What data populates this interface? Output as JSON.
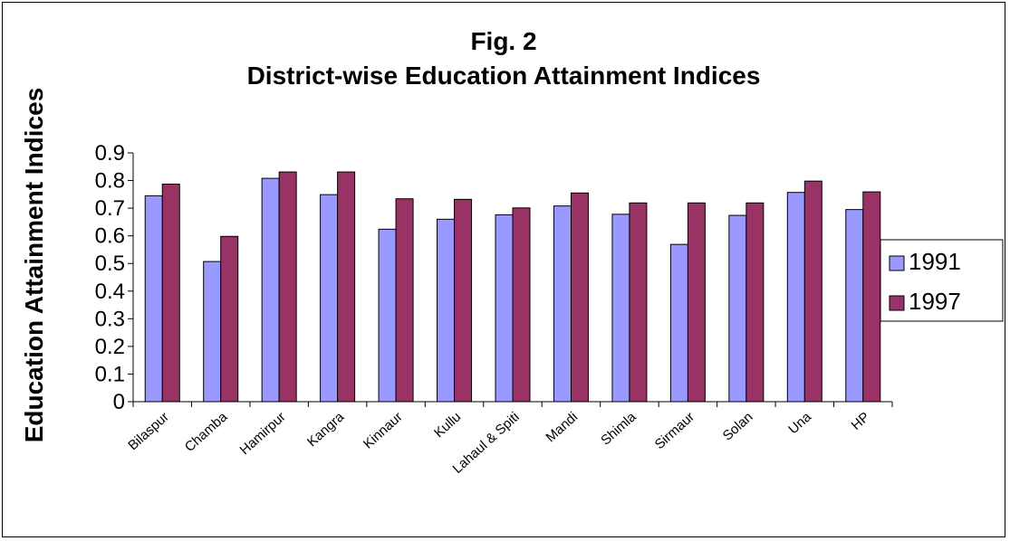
{
  "chart_data": {
    "type": "bar",
    "title_line1": "Fig. 2",
    "title_line2": "District-wise Education Attainment Indices",
    "xlabel": "",
    "ylabel": "Education Attainment Indices",
    "ylim": [
      0,
      0.9
    ],
    "yticks": [
      "0",
      "0.1",
      "0.2",
      "0.3",
      "0.4",
      "0.5",
      "0.6",
      "0.7",
      "0.8",
      "0.9"
    ],
    "grid": false,
    "legend_position": "right",
    "categories": [
      "Bilaspur",
      "Chamba",
      "Hamirpur",
      "Kangra",
      "Kinnaur",
      "Kullu",
      "Lahaul & Spiti",
      "Mandi",
      "Shimla",
      "Sirmaur",
      "Solan",
      "Una",
      "HP"
    ],
    "series": [
      {
        "name": "1991",
        "color": "#9999ff",
        "values": [
          0.745,
          0.507,
          0.808,
          0.749,
          0.624,
          0.66,
          0.676,
          0.708,
          0.678,
          0.569,
          0.674,
          0.757,
          0.695
        ]
      },
      {
        "name": "1997",
        "color": "#993366",
        "values": [
          0.787,
          0.598,
          0.831,
          0.831,
          0.734,
          0.732,
          0.701,
          0.755,
          0.719,
          0.719,
          0.719,
          0.798,
          0.759
        ]
      }
    ]
  }
}
